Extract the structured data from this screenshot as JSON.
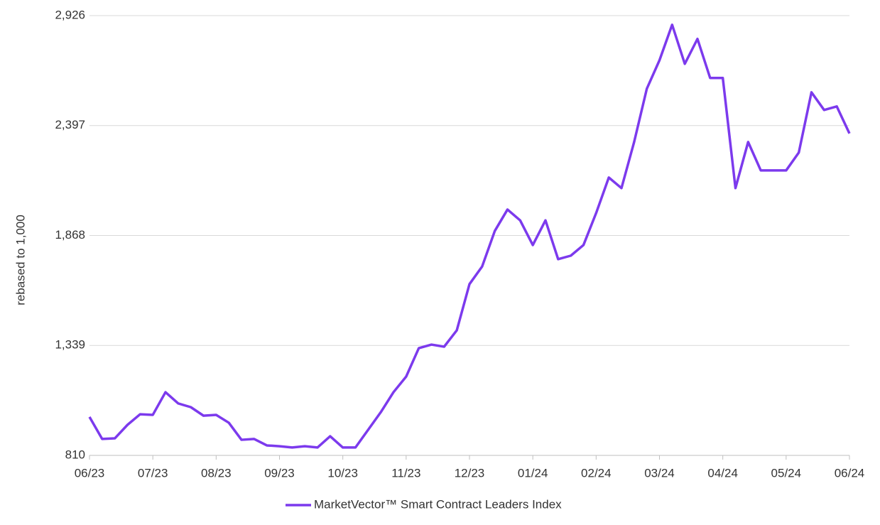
{
  "chart_data": {
    "type": "line",
    "y_label": "rebased to 1,000",
    "x": [
      0,
      0.2,
      0.4,
      0.6,
      0.8,
      1.0,
      1.2,
      1.4,
      1.6,
      1.8,
      2.0,
      2.2,
      2.4,
      2.6,
      2.8,
      3.0,
      3.2,
      3.4,
      3.6,
      3.8,
      4.0,
      4.2,
      4.4,
      4.6,
      4.8,
      5.0,
      5.2,
      5.4,
      5.6,
      5.8,
      6.0,
      6.2,
      6.4,
      6.6,
      6.8,
      7.0,
      7.2,
      7.4,
      7.6,
      7.8,
      8.0,
      8.2,
      8.4,
      8.6,
      8.8,
      9.0,
      9.2,
      9.4,
      9.6,
      9.8,
      10.0,
      10.2,
      10.4,
      10.6,
      10.8,
      11.0,
      11.2,
      11.4,
      11.6,
      11.8,
      12.0
    ],
    "series": [
      {
        "name": "MarketVector™ Smart Contract Leaders Index",
        "color": "#7c3aed",
        "values": [
          995,
          889,
          892,
          957,
          1008,
          1005,
          1114,
          1060,
          1042,
          1001,
          1005,
          967,
          885,
          889,
          858,
          854,
          848,
          854,
          848,
          902,
          848,
          848,
          933,
          1018,
          1114,
          1189,
          1326,
          1343,
          1333,
          1412,
          1634,
          1719,
          1890,
          1993,
          1941,
          1822,
          1941,
          1754,
          1771,
          1822,
          1976,
          2147,
          2096,
          2318,
          2574,
          2711,
          2882,
          2694,
          2814,
          2626,
          2626,
          2096,
          2318,
          2181,
          2181,
          2181,
          2267,
          2557,
          2472,
          2489,
          2359
        ]
      }
    ],
    "xlim": [
      0,
      12
    ],
    "xticks": [
      {
        "value": 0,
        "label": "06/23"
      },
      {
        "value": 1,
        "label": "07/23"
      },
      {
        "value": 2,
        "label": "08/23"
      },
      {
        "value": 3,
        "label": "09/23"
      },
      {
        "value": 4,
        "label": "10/23"
      },
      {
        "value": 5,
        "label": "11/23"
      },
      {
        "value": 6,
        "label": "12/23"
      },
      {
        "value": 7,
        "label": "01/24"
      },
      {
        "value": 8,
        "label": "02/24"
      },
      {
        "value": 9,
        "label": "03/24"
      },
      {
        "value": 10,
        "label": "04/24"
      },
      {
        "value": 11,
        "label": "05/24"
      },
      {
        "value": 12,
        "label": "06/24"
      }
    ],
    "ylim": [
      810,
      2926
    ],
    "yticks": [
      810,
      {
        "value": 1339,
        "label": "1,339"
      },
      {
        "value": 1868,
        "label": "1,868"
      },
      {
        "value": 2397,
        "label": "2,397"
      },
      {
        "value": 2926,
        "label": "2,926"
      }
    ],
    "grid": true,
    "legend": "bottom"
  }
}
